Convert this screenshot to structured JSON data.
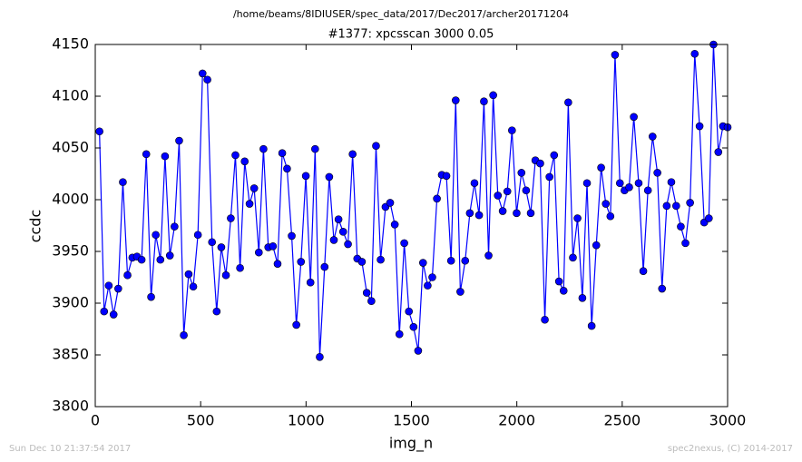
{
  "chart_data": {
    "type": "line",
    "title": "/home/beams/8IDIUSER/spec_data/2017/Dec2017/archer20171204",
    "subtitle": "#1377: xpcsscan 3000 0.05",
    "x_label": "img_n",
    "y_label": "ccdc",
    "annotations": [
      "Sun Dec 10 21:37:54 2017",
      "spec2nexus, (C) 2014-2017"
    ],
    "color": "#0000ff",
    "x": [
      20,
      42,
      64,
      87,
      109,
      131,
      153,
      176,
      198,
      220,
      242,
      265,
      287,
      309,
      331,
      354,
      376,
      398,
      420,
      443,
      465,
      487,
      509,
      532,
      554,
      576,
      598,
      620,
      643,
      665,
      687,
      709,
      732,
      754,
      776,
      798,
      821,
      843,
      865,
      887,
      910,
      932,
      954,
      976,
      999,
      1021,
      1043,
      1065,
      1088,
      1110,
      1132,
      1154,
      1176,
      1199,
      1221,
      1243,
      1265,
      1288,
      1310,
      1332,
      1354,
      1377,
      1399,
      1421,
      1443,
      1466,
      1488,
      1510,
      1532,
      1555,
      1577,
      1599,
      1621,
      1644,
      1666,
      1688,
      1710,
      1732,
      1755,
      1777,
      1799,
      1821,
      1844,
      1866,
      1888,
      1910,
      1933,
      1955,
      1977,
      1999,
      2022,
      2044,
      2066,
      2088,
      2111,
      2133,
      2155,
      2177,
      2200,
      2222,
      2244,
      2266,
      2288,
      2311,
      2333,
      2355,
      2377,
      2400,
      2422,
      2444,
      2466,
      2489,
      2511,
      2533,
      2555,
      2578,
      2600,
      2622,
      2644,
      2667,
      2689,
      2711,
      2733,
      2756,
      2778,
      2800,
      2822,
      2844,
      2867,
      2889,
      2911,
      2933,
      2956,
      2978,
      3000
    ],
    "values": [
      4066,
      3892,
      3917,
      3889,
      3914,
      4017,
      3927,
      3944,
      3945,
      3942,
      4044,
      3906,
      3966,
      3942,
      4042,
      3946,
      3974,
      4057,
      3869,
      3928,
      3916,
      3966,
      4122,
      4116,
      3959,
      3892,
      3954,
      3927,
      3982,
      4043,
      3934,
      4037,
      3996,
      4011,
      3949,
      4049,
      3954,
      3955,
      3938,
      4045,
      4030,
      3965,
      3879,
      3940,
      4023,
      3920,
      4049,
      3848,
      3935,
      4022,
      3961,
      3981,
      3969,
      3957,
      4044,
      3943,
      3940,
      3910,
      3902,
      4052,
      3942,
      3993,
      3997,
      3976,
      3870,
      3958,
      3892,
      3877,
      3854,
      3939,
      3917,
      3925,
      4001,
      4024,
      4023,
      3941,
      4096,
      3911,
      3941,
      3987,
      4016,
      3985,
      4095,
      3946,
      4101,
      4004,
      3989,
      4008,
      4067,
      3987,
      4026,
      4009,
      3987,
      4038,
      4035,
      3884,
      4022,
      4043,
      3921,
      3912,
      4094,
      3944,
      3982,
      3905,
      4016,
      3878,
      3956,
      4031,
      3996,
      3984,
      4140,
      4016,
      4009,
      4012,
      4080,
      4016,
      3931,
      4009,
      4061,
      4026,
      3914,
      3994,
      4017,
      3994,
      3974,
      3958,
      3997,
      4141,
      4071,
      3978,
      3982,
      4150,
      4046,
      4071,
      4070
    ],
    "xlim": [
      0,
      3000
    ],
    "xticks": [
      0,
      500,
      1000,
      1500,
      2000,
      2500,
      3000
    ],
    "ylim": [
      3800,
      4150
    ],
    "yticks": [
      3800,
      3850,
      3900,
      3950,
      4000,
      4050,
      4100,
      4150
    ]
  }
}
